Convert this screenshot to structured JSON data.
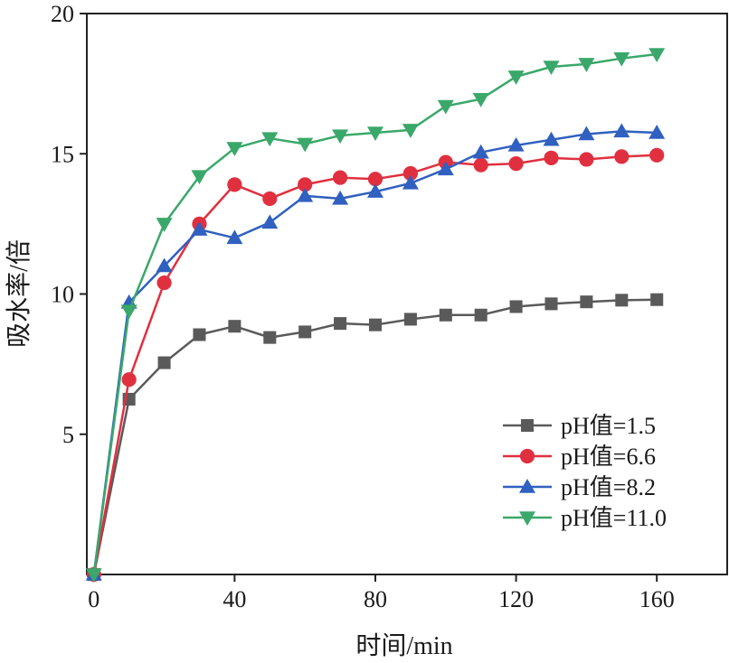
{
  "chart_data": {
    "type": "line",
    "xlabel": "时间/min",
    "ylabel": "吸水率/倍",
    "xlim": [
      -2,
      180
    ],
    "ylim": [
      0,
      20
    ],
    "xticks": [
      0,
      40,
      80,
      120,
      160
    ],
    "yticks": [
      5,
      10,
      15,
      20
    ],
    "grid": false,
    "legend_position": "bottom-right",
    "x": [
      0,
      10,
      20,
      30,
      40,
      50,
      60,
      70,
      80,
      90,
      100,
      110,
      120,
      130,
      140,
      150,
      160
    ],
    "series": [
      {
        "name": "pH值=1.5",
        "color": "#5a5a5a",
        "marker": "square",
        "values": [
          0,
          6.25,
          7.55,
          8.55,
          8.85,
          8.45,
          8.65,
          8.95,
          8.9,
          9.1,
          9.25,
          9.25,
          9.55,
          9.65,
          9.72,
          9.78,
          9.8
        ]
      },
      {
        "name": "pH值=6.6",
        "color": "#e03040",
        "marker": "circle",
        "values": [
          0,
          6.95,
          10.4,
          12.5,
          13.9,
          13.4,
          13.9,
          14.15,
          14.1,
          14.3,
          14.7,
          14.6,
          14.65,
          14.85,
          14.8,
          14.9,
          14.95
        ]
      },
      {
        "name": "pH值=8.2",
        "color": "#3060c0",
        "marker": "triangle-up",
        "values": [
          0,
          9.7,
          11.0,
          12.3,
          12.0,
          12.55,
          13.5,
          13.4,
          13.65,
          13.95,
          14.45,
          15.05,
          15.3,
          15.5,
          15.7,
          15.8,
          15.75
        ]
      },
      {
        "name": "pH值=11.0",
        "color": "#3aa86a",
        "marker": "triangle-down",
        "values": [
          0,
          9.4,
          12.5,
          14.2,
          15.2,
          15.55,
          15.35,
          15.65,
          15.75,
          15.85,
          16.7,
          16.95,
          17.75,
          18.1,
          18.2,
          18.4,
          18.55
        ]
      }
    ]
  }
}
